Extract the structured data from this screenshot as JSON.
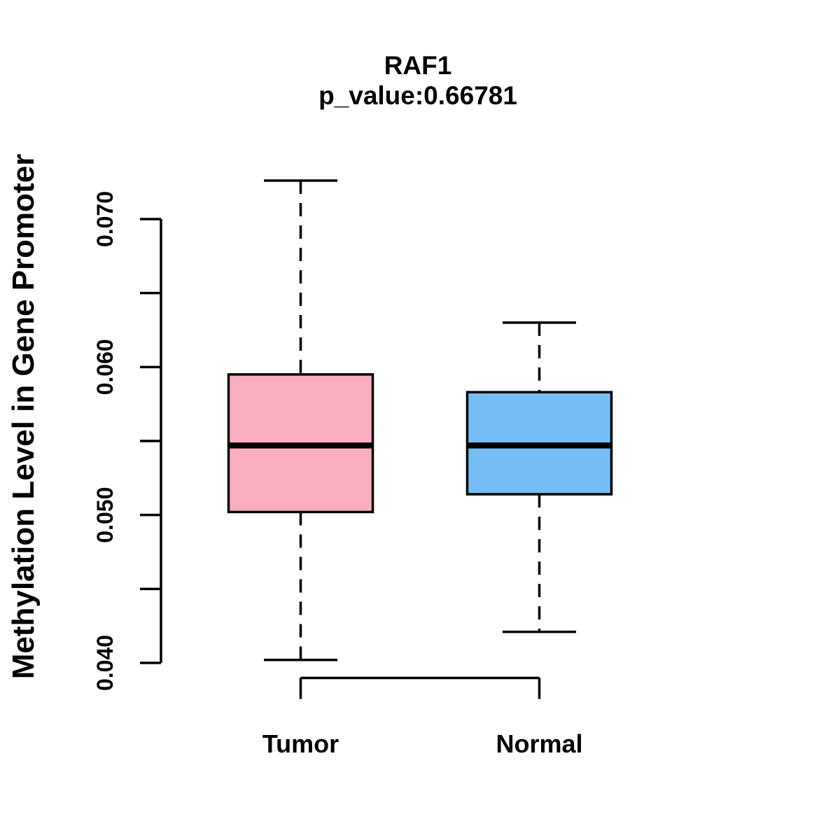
{
  "header": {
    "title": "RAF1",
    "subtitle": "p_value:0.66781"
  },
  "axes": {
    "y_label": "Methylation Level in Gene Promoter",
    "y_tick_labels": [
      "0.040",
      "0.050",
      "0.060",
      "0.070"
    ],
    "x_category_labels": [
      "Tumor",
      "Normal"
    ]
  },
  "colors": {
    "tumor_box": "#FCAEC1",
    "normal_box": "#75BDF5",
    "outline": "#000000",
    "background": "#FFFFFF"
  },
  "chart_data": {
    "type": "boxplot",
    "title": "RAF1",
    "subtitle": "p_value:0.66781",
    "p_value": 0.66781,
    "gene": "RAF1",
    "ylabel": "Methylation Level in Gene Promoter",
    "xlabel": "",
    "categories": [
      "Tumor",
      "Normal"
    ],
    "series": [
      {
        "name": "Tumor",
        "color": "#FCAEC1",
        "whisker_low": 0.0402,
        "q1": 0.0502,
        "median": 0.0547,
        "q3": 0.0595,
        "whisker_high": 0.0726
      },
      {
        "name": "Normal",
        "color": "#75BDF5",
        "whisker_low": 0.0421,
        "q1": 0.0514,
        "median": 0.0547,
        "q3": 0.0583,
        "whisker_high": 0.063
      }
    ],
    "ylim": [
      0.04,
      0.07
    ],
    "yticks": [
      0.04,
      0.045,
      0.05,
      0.055,
      0.06,
      0.065,
      0.07
    ],
    "ytick_labels": [
      "0.040",
      "0.050",
      "0.060",
      "0.070"
    ],
    "grid": false,
    "legend_position": "none",
    "whisker_style": "dashed",
    "outliers": []
  }
}
